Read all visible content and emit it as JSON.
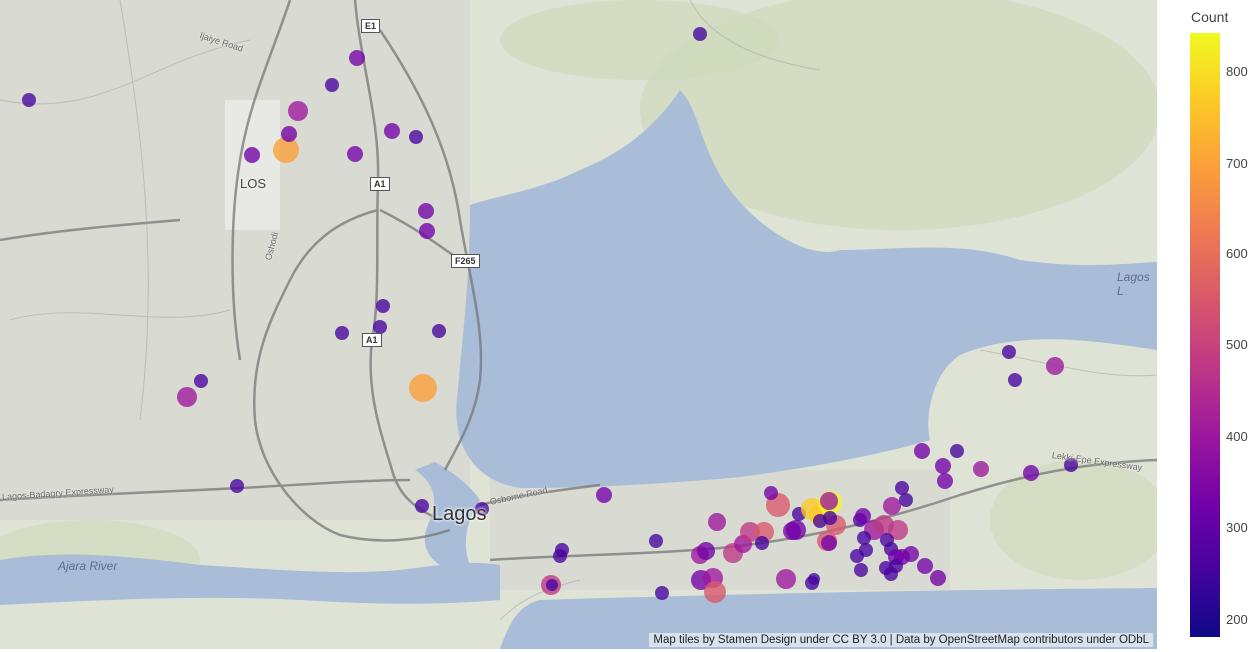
{
  "map": {
    "attribution": "Map tiles by Stamen Design under CC BY 3.0 | Data by OpenStreetMap contributors under ODbL",
    "labels": {
      "city": "Lagos",
      "airport": "LOS",
      "lagoon": "Lagos L",
      "river": "Ajara River"
    },
    "road_shields": [
      "E1",
      "A1",
      "F265",
      "A1"
    ],
    "road_names": [
      "Ijaiye Road",
      "Oshodi",
      "Lagos-Badagry Expressway",
      "Osborne Road",
      "Lekki-Epe Expressway"
    ],
    "marker_colorscale": "plasma"
  },
  "colorbar": {
    "title": "Count",
    "ticks": [
      "800",
      "700",
      "600",
      "500",
      "400",
      "300",
      "200"
    ],
    "colors": [
      "#0d0887",
      "#46039f",
      "#7201a8",
      "#9c179e",
      "#bd3786",
      "#d8576b",
      "#ed7953",
      "#fb9f3a",
      "#fdca26",
      "#f0f921"
    ]
  }
}
